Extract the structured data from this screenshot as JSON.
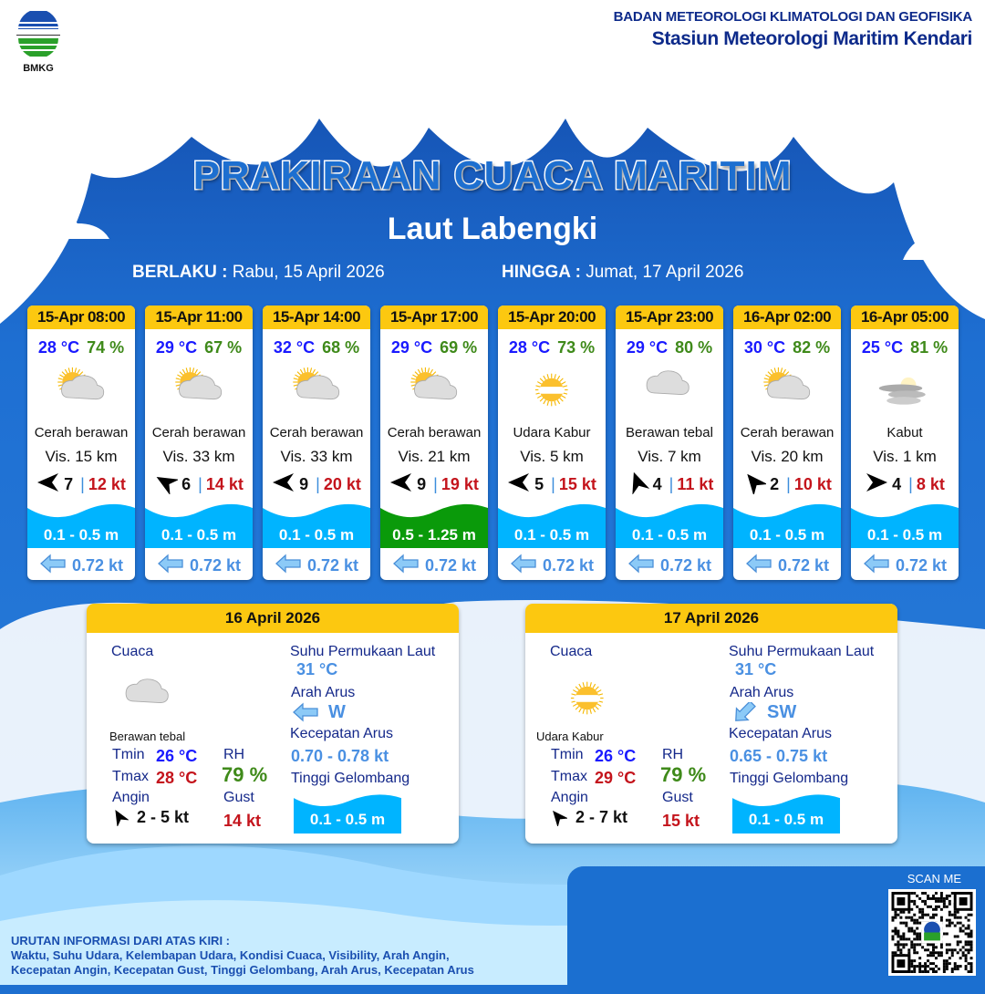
{
  "header": {
    "org": "BADAN METEOROLOGI KLIMATOLOGI DAN GEOFISIKA",
    "station": "Stasiun Meteorologi Maritim Kendari",
    "logo_text": "BMKG"
  },
  "title": "PRAKIRAAN CUACA MARITIM",
  "area": "Laut Labengki",
  "validity": {
    "from_label": "BERLAKU :",
    "from": "Rabu, 15 April 2026",
    "to_label": "HINGGA :",
    "to": "Jumat, 17 April 2026"
  },
  "colors": {
    "header_yellow": "#fcc810",
    "wave_low": "#00b4ff",
    "wave_moderate": "#0a9a0a",
    "temp": "#1a1aff",
    "humidity": "#3f8a1a",
    "gust": "#c4141c",
    "current": "#4a90e2"
  },
  "forecasts": [
    {
      "time": "15-Apr 08:00",
      "temp": "28 °C",
      "rh": "74 %",
      "icon": "partly-cloudy",
      "cond": "Cerah berawan",
      "vis": "Vis.  15 km",
      "wind_dir_deg": 270,
      "wind": "7",
      "gust": "12 kt",
      "wave": "0.1 - 0.5 m",
      "wave_color": "#00b4ff",
      "current": "0.72 kt"
    },
    {
      "time": "15-Apr 11:00",
      "temp": "29 °C",
      "rh": "67 %",
      "icon": "partly-cloudy",
      "cond": "Cerah berawan",
      "vis": "Vis. 33 km",
      "wind_dir_deg": 300,
      "wind": "6",
      "gust": "14 kt",
      "wave": "0.1 - 0.5 m",
      "wave_color": "#00b4ff",
      "current": "0.72 kt"
    },
    {
      "time": "15-Apr 14:00",
      "temp": "32 °C",
      "rh": "68 %",
      "icon": "partly-cloudy",
      "cond": "Cerah berawan",
      "vis": "Vis. 33 km",
      "wind_dir_deg": 270,
      "wind": "9",
      "gust": "20 kt",
      "wave": "0.1 - 0.5 m",
      "wave_color": "#00b4ff",
      "current": "0.72 kt"
    },
    {
      "time": "15-Apr 17:00",
      "temp": "29 °C",
      "rh": "69 %",
      "icon": "partly-cloudy",
      "cond": "Cerah berawan",
      "vis": "Vis.  21 km",
      "wind_dir_deg": 270,
      "wind": "9",
      "gust": "19 kt",
      "wave": "0.5 - 1.25 m",
      "wave_color": "#0a9a0a",
      "current": "0.72 kt"
    },
    {
      "time": "15-Apr 20:00",
      "temp": "28 °C",
      "rh": "73 %",
      "icon": "haze",
      "cond": "Udara Kabur",
      "vis": "Vis.  5 km",
      "wind_dir_deg": 270,
      "wind": "5",
      "gust": "15 kt",
      "wave": "0.1 - 0.5 m",
      "wave_color": "#00b4ff",
      "current": "0.72 kt"
    },
    {
      "time": "15-Apr 23:00",
      "temp": "29 °C",
      "rh": "80 %",
      "icon": "cloudy",
      "cond": "Berawan tebal",
      "vis": "Vis.  7 km",
      "wind_dir_deg": 340,
      "wind": "4",
      "gust": "11 kt",
      "wave": "0.1 - 0.5 m",
      "wave_color": "#00b4ff",
      "current": "0.72 kt"
    },
    {
      "time": "16-Apr 02:00",
      "temp": "30 °C",
      "rh": "82 %",
      "icon": "partly-cloudy",
      "cond": "Cerah berawan",
      "vis": "Vis.  20 km",
      "wind_dir_deg": 320,
      "wind": "2",
      "gust": "10 kt",
      "wave": "0.1 - 0.5 m",
      "wave_color": "#00b4ff",
      "current": "0.72 kt"
    },
    {
      "time": "16-Apr 05:00",
      "temp": "25 °C",
      "rh": "81 %",
      "icon": "fog",
      "cond": "Kabut",
      "vis": "Vis.   1 km",
      "wind_dir_deg": 90,
      "wind": "4",
      "gust": "8 kt",
      "wave": "0.1 - 0.5 m",
      "wave_color": "#00b4ff",
      "current": "0.72 kt"
    }
  ],
  "daily": [
    {
      "date": "16 April 2026",
      "cuaca_label": "Cuaca",
      "icon": "cloudy",
      "cond": "Berawan tebal",
      "tmin_label": "Tmin",
      "tmin": "26 °C",
      "tmax_label": "Tmax",
      "tmax": "28 °C",
      "angin_label": "Angin",
      "wind_dir_deg": 330,
      "angin": "2  - 5 kt",
      "rh_label": "RH",
      "rh": "79 %",
      "gust_label": "Gust",
      "gust": "14 kt",
      "sst_label": "Suhu Permukaan Laut",
      "sst": "31 °C",
      "arah_label": "Arah Arus",
      "arah_deg": 270,
      "arah": "W",
      "kec_label": "Kecepatan Arus",
      "kec": "0.70  - 0.78 kt",
      "tinggi_label": "Tinggi Gelombang",
      "tinggi": "0.1 - 0.5 m"
    },
    {
      "date": "17 April 2026",
      "cuaca_label": "Cuaca",
      "icon": "haze",
      "cond": "Udara Kabur",
      "tmin_label": "Tmin",
      "tmin": "26 °C",
      "tmax_label": "Tmax",
      "tmax": "29 °C",
      "angin_label": "Angin",
      "wind_dir_deg": 320,
      "angin": "2  - 7 kt",
      "rh_label": "RH",
      "rh": "79 %",
      "gust_label": "Gust",
      "gust": "15 kt",
      "sst_label": "Suhu Permukaan Laut",
      "sst": "31 °C",
      "arah_label": "Arah Arus",
      "arah_deg": 225,
      "arah": "SW",
      "kec_label": "Kecepatan Arus",
      "kec": "0.65  - 0.75 kt",
      "tinggi_label": "Tinggi Gelombang",
      "tinggi": "0.1 - 0.5 m"
    }
  ],
  "footer": {
    "info_title": "URUTAN INFORMASI DARI ATAS KIRI :",
    "info_line1": "Waktu, Suhu Udara, Kelembapan Udara, Kondisi Cuaca, Visibility, Arah Angin,",
    "info_line2": "Kecepatan Angin, Kecepatan Gust, Tinggi Gelombang, Arah Arus, Kecepatan Arus",
    "scan": "SCAN ME"
  }
}
